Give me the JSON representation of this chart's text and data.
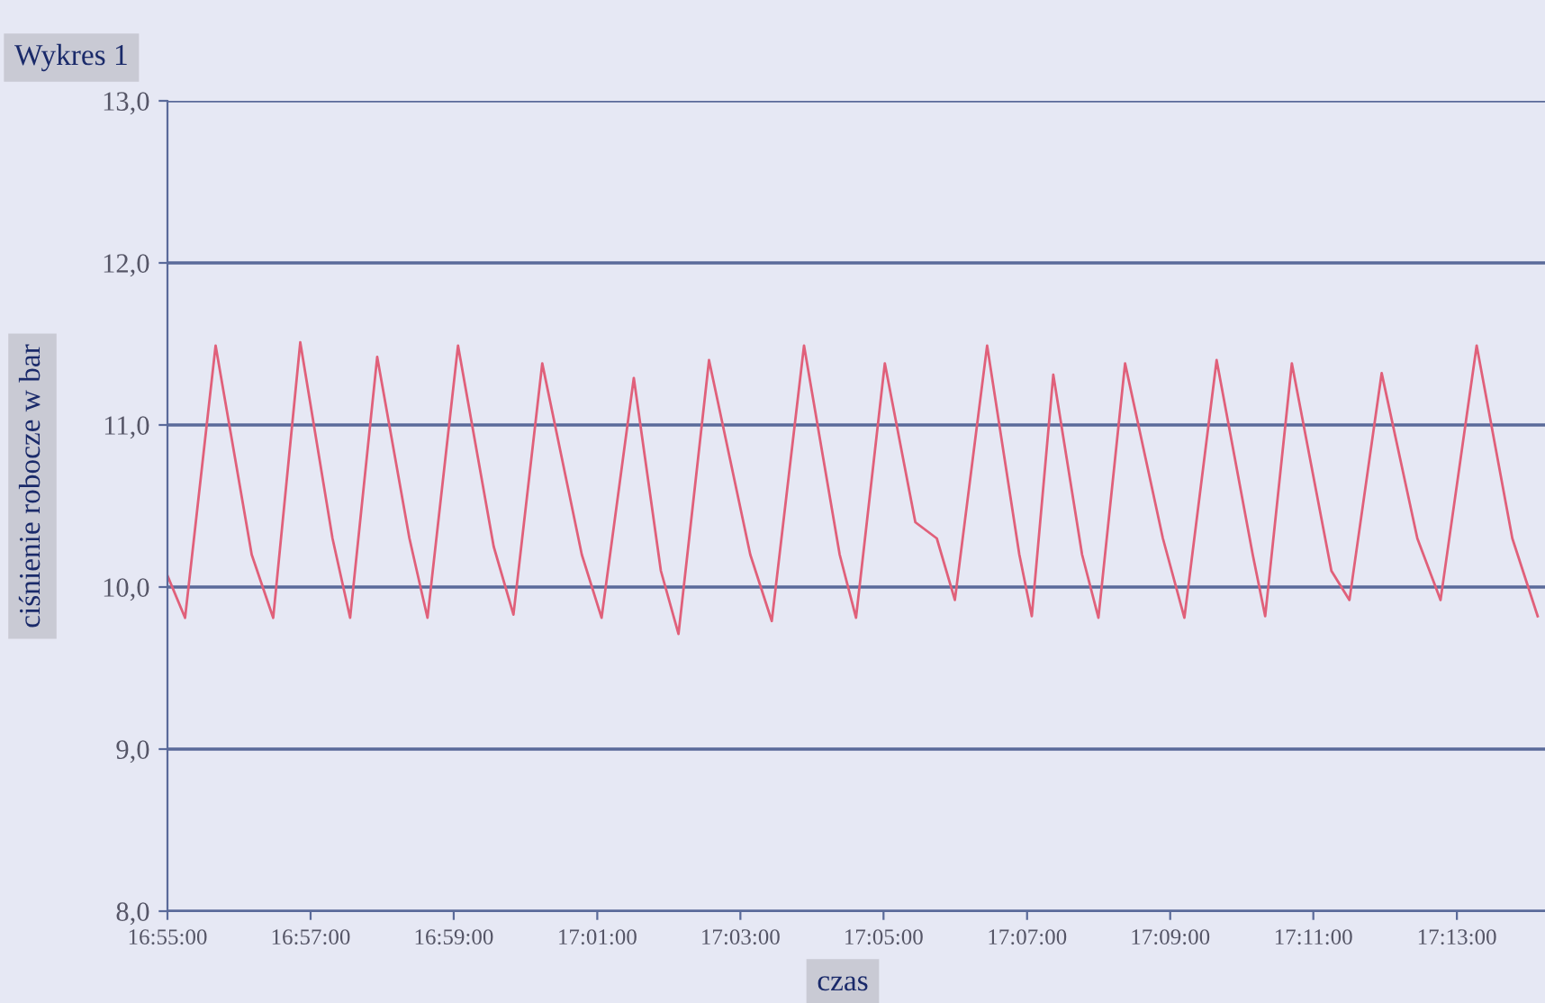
{
  "chart_data": {
    "type": "line",
    "title": "Wykres 1",
    "xlabel": "czas",
    "ylabel": "ciśnienie robocze w bar",
    "x": [
      16.9167,
      16.9208,
      16.9279,
      16.9363,
      16.9413,
      16.9476,
      16.9551,
      16.9592,
      16.9655,
      16.973,
      16.9772,
      16.9843,
      16.9926,
      16.9972,
      17.0039,
      17.0131,
      17.0177,
      17.0252,
      17.0315,
      17.0356,
      17.0427,
      17.0523,
      17.0573,
      17.0648,
      17.0731,
      17.0769,
      17.0836,
      17.0907,
      17.0957,
      17.0999,
      17.1074,
      17.1149,
      17.1178,
      17.1228,
      17.1295,
      17.1333,
      17.1395,
      17.1483,
      17.1533,
      17.1608,
      17.1692,
      17.1721,
      17.1783,
      17.1875,
      17.1917,
      17.1992,
      17.2075,
      17.2129,
      17.2213,
      17.2296,
      17.2355
    ],
    "series": [
      {
        "color": "#e0607a",
        "values": [
          10.07,
          9.81,
          11.49,
          10.2,
          9.81,
          11.51,
          10.3,
          9.81,
          11.42,
          10.3,
          9.81,
          11.49,
          10.25,
          9.83,
          11.38,
          10.2,
          9.81,
          11.29,
          10.1,
          9.71,
          11.4,
          10.2,
          9.79,
          11.49,
          10.2,
          9.81,
          11.38,
          10.4,
          10.3,
          9.92,
          11.49,
          10.2,
          9.82,
          11.31,
          10.2,
          9.81,
          11.38,
          10.3,
          9.81,
          11.4,
          10.2,
          9.82,
          11.38,
          10.1,
          9.92,
          11.32,
          10.3,
          9.92,
          11.49,
          10.3,
          9.82
        ]
      }
    ],
    "xlim": [
      16.9167,
      17.2372
    ],
    "xticks": [
      {
        "value": 16.9167,
        "label": "16:55:00"
      },
      {
        "value": 16.95,
        "label": "16:57:00"
      },
      {
        "value": 16.9833,
        "label": "16:59:00"
      },
      {
        "value": 17.0167,
        "label": "17:01:00"
      },
      {
        "value": 17.05,
        "label": "17:03:00"
      },
      {
        "value": 17.0833,
        "label": "17:05:00"
      },
      {
        "value": 17.1167,
        "label": "17:07:00"
      },
      {
        "value": 17.15,
        "label": "17:09:00"
      },
      {
        "value": 17.1833,
        "label": "17:11:00"
      },
      {
        "value": 17.2167,
        "label": "17:13:00"
      }
    ],
    "ylim": [
      8,
      13
    ],
    "yticks": [
      {
        "value": 8,
        "label": "8,0"
      },
      {
        "value": 9,
        "label": "9,0"
      },
      {
        "value": 10,
        "label": "10,0"
      },
      {
        "value": 11,
        "label": "11,0"
      },
      {
        "value": 12,
        "label": "12,0"
      },
      {
        "value": 13,
        "label": "13,0"
      }
    ],
    "grid": "y",
    "line_style": "solid",
    "marker": "none"
  }
}
